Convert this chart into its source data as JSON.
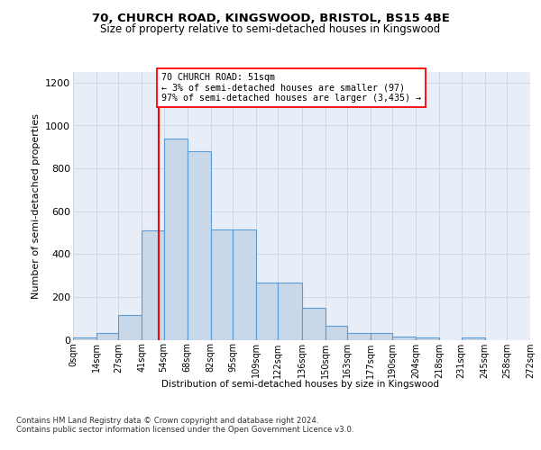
{
  "title1": "70, CHURCH ROAD, KINGSWOOD, BRISTOL, BS15 4BE",
  "title2": "Size of property relative to semi-detached houses in Kingswood",
  "xlabel": "Distribution of semi-detached houses by size in Kingswood",
  "ylabel": "Number of semi-detached properties",
  "bin_edges": [
    0,
    14,
    27,
    41,
    54,
    68,
    82,
    95,
    109,
    122,
    136,
    150,
    163,
    177,
    190,
    204,
    218,
    231,
    245,
    258,
    272
  ],
  "bar_heights": [
    10,
    30,
    115,
    510,
    940,
    880,
    515,
    515,
    265,
    265,
    150,
    65,
    30,
    30,
    15,
    10,
    0,
    10,
    0,
    0
  ],
  "bar_color": "#c8d8e8",
  "bar_edge_color": "#5b9bd5",
  "grid_color": "#d0d8e8",
  "bg_color": "#e8eef8",
  "property_line_x": 51,
  "annotation_text": "70 CHURCH ROAD: 51sqm\n← 3% of semi-detached houses are smaller (97)\n97% of semi-detached houses are larger (3,435) →",
  "vline_color": "red",
  "tick_labels": [
    "0sqm",
    "14sqm",
    "27sqm",
    "41sqm",
    "54sqm",
    "68sqm",
    "82sqm",
    "95sqm",
    "109sqm",
    "122sqm",
    "136sqm",
    "150sqm",
    "163sqm",
    "177sqm",
    "190sqm",
    "204sqm",
    "218sqm",
    "231sqm",
    "245sqm",
    "258sqm",
    "272sqm"
  ],
  "ylim": [
    0,
    1250
  ],
  "yticks": [
    0,
    200,
    400,
    600,
    800,
    1000,
    1200
  ],
  "footer": "Contains HM Land Registry data © Crown copyright and database right 2024.\nContains public sector information licensed under the Open Government Licence v3.0."
}
